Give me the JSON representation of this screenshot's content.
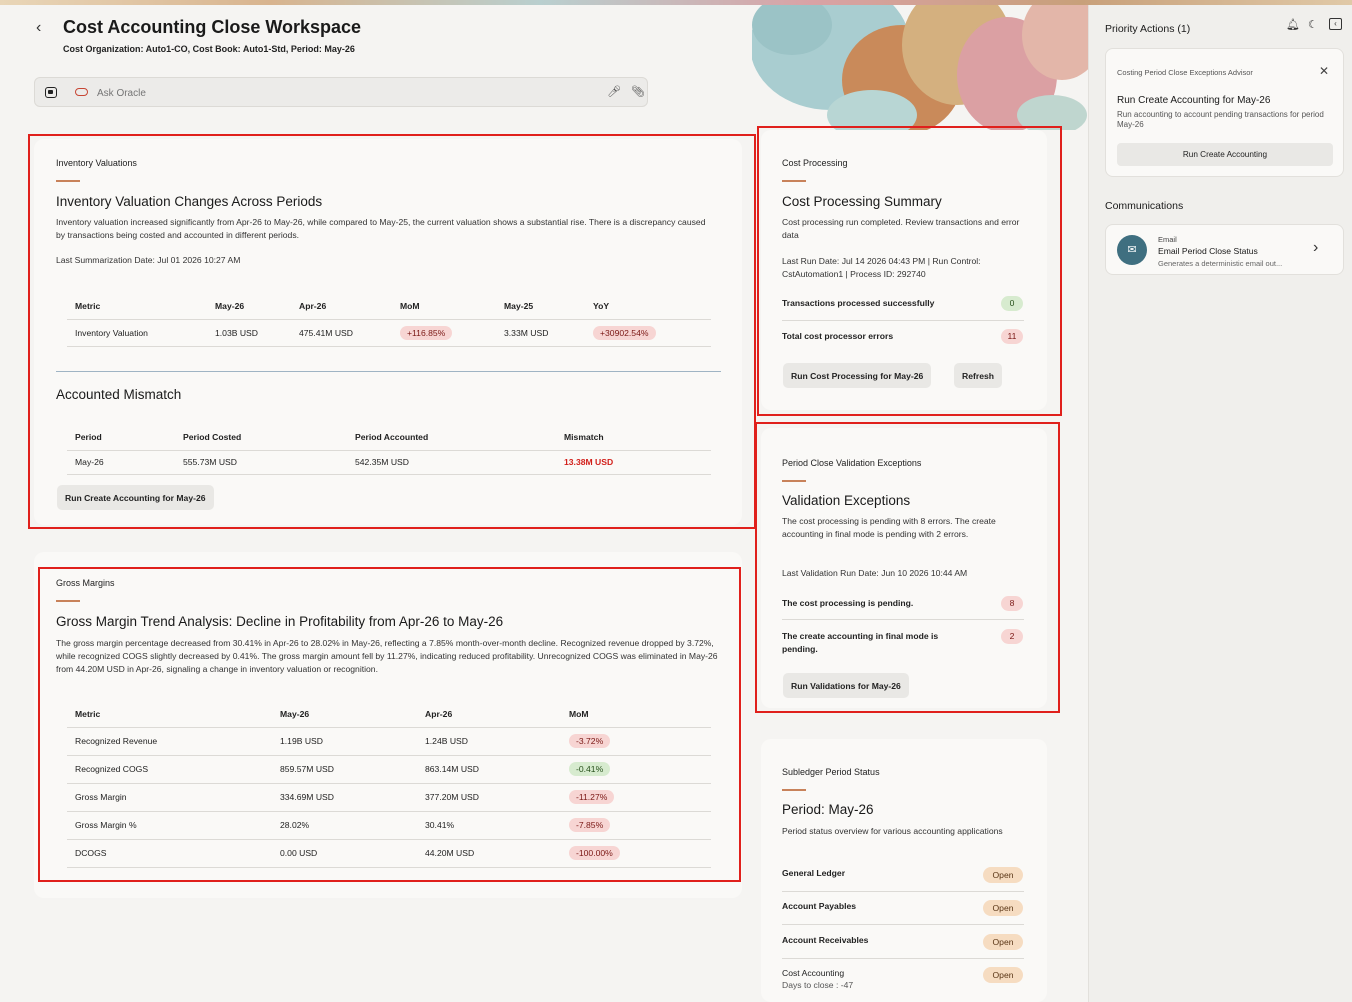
{
  "header": {
    "title": "Cost Accounting Close Workspace",
    "subtitle": "Cost Organization: Auto1-CO, Cost Book: Auto1-Std, Period: May-26"
  },
  "ask": {
    "placeholder": "Ask Oracle"
  },
  "inventory": {
    "section_label": "Inventory Valuations",
    "title": "Inventory Valuation Changes Across Periods",
    "description": "Inventory valuation increased significantly from Apr-26 to May-26, while compared to May-25, the current valuation shows a substantial rise. There is a discrepancy caused by transactions being costed and accounted in different periods.",
    "last_summarization": "Last Summarization Date: Jul 01 2026 10:27 AM",
    "columns": [
      "Metric",
      "May-26",
      "Apr-26",
      "MoM",
      "May-25",
      "YoY"
    ],
    "rows": [
      {
        "metric": "Inventory Valuation",
        "may26": "1.03B USD",
        "apr26": "475.41M USD",
        "mom": "+116.85%",
        "may25": "3.33M USD",
        "yoy": "+30902.54%"
      }
    ],
    "mismatch_title": "Accounted Mismatch",
    "mismatch_columns": [
      "Period",
      "Period Costed",
      "Period Accounted",
      "Mismatch"
    ],
    "mismatch_rows": [
      {
        "period": "May-26",
        "costed": "555.73M USD",
        "accounted": "542.35M USD",
        "mismatch": "13.38M USD"
      }
    ],
    "button_label": "Run Create Accounting for May-26"
  },
  "gross": {
    "section_label": "Gross Margins",
    "title": "Gross Margin Trend Analysis: Decline in Profitability from Apr-26 to May-26",
    "description": "The gross margin percentage decreased from 30.41% in Apr-26 to 28.02% in May-26, reflecting a 7.85% month-over-month decline. Recognized revenue dropped by 3.72%, while recognized COGS slightly decreased by 0.41%. The gross margin amount fell by 11.27%, indicating reduced profitability. Unrecognized COGS was eliminated in May-26 from 44.20M USD in Apr-26, signaling a change in inventory valuation or recognition.",
    "columns": [
      "Metric",
      "May-26",
      "Apr-26",
      "MoM"
    ],
    "rows": [
      {
        "metric": "Recognized Revenue",
        "may26": "1.19B USD",
        "apr26": "1.24B USD",
        "mom": "-3.72%",
        "tone": "red"
      },
      {
        "metric": "Recognized COGS",
        "may26": "859.57M USD",
        "apr26": "863.14M USD",
        "mom": "-0.41%",
        "tone": "green"
      },
      {
        "metric": "Gross Margin",
        "may26": "334.69M USD",
        "apr26": "377.20M USD",
        "mom": "-11.27%",
        "tone": "red"
      },
      {
        "metric": "Gross Margin %",
        "may26": "28.02%",
        "apr26": "30.41%",
        "mom": "-7.85%",
        "tone": "red"
      },
      {
        "metric": "DCOGS",
        "may26": "0.00 USD",
        "apr26": "44.20M USD",
        "mom": "-100.00%",
        "tone": "red"
      }
    ]
  },
  "cost_processing": {
    "section_label": "Cost Processing",
    "title": "Cost Processing Summary",
    "description": "Cost processing run completed. Review transactions and error data",
    "run_info": "Last Run Date: Jul 14 2026 04:43 PM | Run Control: CstAutomation1 | Process ID: 292740",
    "success_label": "Transactions processed successfully",
    "success_count": "0",
    "error_label": "Total cost processor errors",
    "error_count": "11",
    "run_button": "Run Cost Processing for May-26",
    "refresh_button": "Refresh"
  },
  "validation": {
    "section_label": "Period Close Validation Exceptions",
    "title": "Validation Exceptions",
    "description": "The cost processing is pending with 8 errors. The create accounting in final mode is pending with 2 errors.",
    "last_run": "Last Validation Run Date: Jun 10 2026 10:44 AM",
    "item1_label": "The cost processing is pending.",
    "item1_count": "8",
    "item2_label": "The create accounting in final mode is pending.",
    "item2_count": "2",
    "button_label": "Run Validations for May-26"
  },
  "subledger": {
    "section_label": "Subledger Period Status",
    "title": "Period: May-26",
    "description": "Period status overview for various accounting applications",
    "items": [
      {
        "name": "General Ledger",
        "status": "Open"
      },
      {
        "name": "Account Payables",
        "status": "Open"
      },
      {
        "name": "Account Receivables",
        "status": "Open"
      },
      {
        "name": "Cost Accounting",
        "status": "Open",
        "note": "Days to close : -47"
      }
    ]
  },
  "priority": {
    "title": "Priority Actions (1)",
    "advisor_label": "Costing Period Close Exceptions Advisor",
    "action_title": "Run Create Accounting for May-26",
    "action_desc": "Run accounting to account pending transactions for period May-26",
    "action_button": "Run Create Accounting"
  },
  "communications": {
    "title": "Communications",
    "type": "Email",
    "item_title": "Email Period Close Status",
    "item_desc": "Generates a deterministic email out..."
  },
  "icons": {
    "back": "chevron-left-icon",
    "ask": "assistant-icon",
    "oracle": "oracle-logo-icon",
    "mic": "microphone-icon",
    "attach": "paperclip-icon",
    "bell": "bell-icon",
    "moon": "moon-icon",
    "collapse": "panel-collapse-icon",
    "close": "close-icon",
    "mail": "mail-icon",
    "chevron_right": "chevron-right-icon"
  },
  "colors": {
    "accent_rule": "#c8825a",
    "mismatch": "#d21f1a",
    "highlight_box": "#e0201c",
    "mail_avatar": "#3f6f80"
  }
}
